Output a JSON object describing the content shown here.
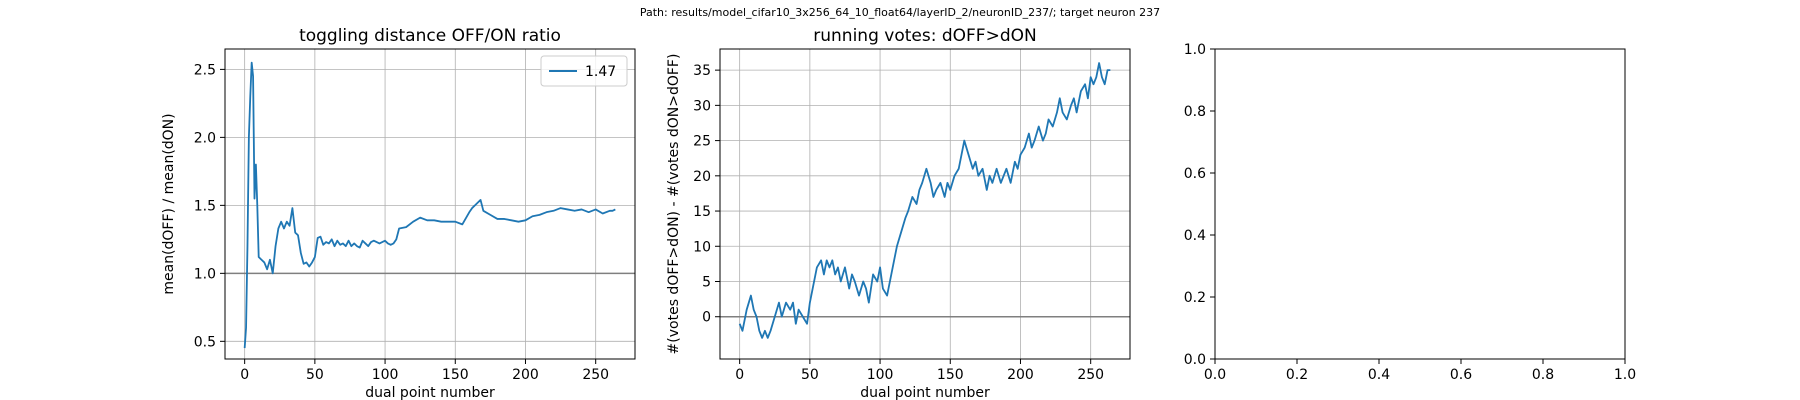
{
  "figure": {
    "suptitle": "Path: results/model_cifar10_3x256_64_10_float64/layerID_2/neuronID_237/; target neuron 237"
  },
  "chart_data": [
    {
      "type": "line",
      "title": "toggling distance OFF/ON ratio",
      "xlabel": "dual point number",
      "ylabel": "mean(dOFF) / mean(dON)",
      "xlim": [
        -14,
        278
      ],
      "ylim": [
        0.37,
        2.65
      ],
      "xticks": [
        0,
        50,
        100,
        150,
        200,
        250
      ],
      "yticks": [
        0.5,
        1.0,
        1.5,
        2.0,
        2.5
      ],
      "ytick_labels": [
        "0.5",
        "1.0",
        "1.5",
        "2.0",
        "2.5"
      ],
      "grid": true,
      "hline": 1.0,
      "legend": {
        "position": "top-right",
        "entries": [
          "1.47"
        ]
      },
      "series": [
        {
          "name": "1.47",
          "color": "#1f77b4",
          "x": [
            0,
            1,
            2,
            3,
            4,
            5,
            6,
            7,
            8,
            9,
            10,
            12,
            14,
            16,
            18,
            20,
            22,
            24,
            26,
            28,
            30,
            32,
            34,
            36,
            38,
            40,
            42,
            44,
            46,
            48,
            50,
            52,
            54,
            56,
            58,
            60,
            62,
            64,
            66,
            68,
            70,
            72,
            74,
            76,
            78,
            80,
            82,
            84,
            86,
            88,
            90,
            92,
            94,
            96,
            98,
            100,
            102,
            104,
            106,
            108,
            110,
            115,
            120,
            125,
            130,
            135,
            140,
            145,
            150,
            155,
            160,
            162,
            164,
            166,
            168,
            170,
            175,
            180,
            185,
            190,
            195,
            200,
            205,
            210,
            215,
            220,
            225,
            230,
            235,
            240,
            245,
            250,
            255,
            260,
            262,
            264
          ],
          "y": [
            0.45,
            0.6,
            1.2,
            2.0,
            2.3,
            2.55,
            2.45,
            1.55,
            1.8,
            1.5,
            1.12,
            1.1,
            1.08,
            1.03,
            1.1,
            1.0,
            1.2,
            1.33,
            1.38,
            1.33,
            1.38,
            1.35,
            1.48,
            1.3,
            1.28,
            1.15,
            1.07,
            1.08,
            1.05,
            1.08,
            1.12,
            1.26,
            1.27,
            1.21,
            1.23,
            1.22,
            1.25,
            1.2,
            1.24,
            1.21,
            1.22,
            1.2,
            1.24,
            1.2,
            1.22,
            1.2,
            1.19,
            1.24,
            1.22,
            1.2,
            1.23,
            1.24,
            1.23,
            1.22,
            1.23,
            1.24,
            1.22,
            1.21,
            1.22,
            1.25,
            1.33,
            1.34,
            1.38,
            1.41,
            1.39,
            1.39,
            1.38,
            1.38,
            1.38,
            1.36,
            1.45,
            1.48,
            1.5,
            1.52,
            1.54,
            1.46,
            1.43,
            1.4,
            1.4,
            1.39,
            1.38,
            1.39,
            1.42,
            1.43,
            1.45,
            1.46,
            1.48,
            1.47,
            1.46,
            1.47,
            1.45,
            1.47,
            1.44,
            1.46,
            1.46,
            1.47
          ]
        }
      ]
    },
    {
      "type": "line",
      "title": "running votes: dOFF>dON",
      "xlabel": "dual point number",
      "ylabel": "#(votes dOFF>dON) - #(votes dON>dOFF)",
      "xlim": [
        -14,
        278
      ],
      "ylim": [
        -6,
        38
      ],
      "xticks": [
        0,
        50,
        100,
        150,
        200,
        250
      ],
      "yticks": [
        0,
        5,
        10,
        15,
        20,
        25,
        30,
        35
      ],
      "ytick_labels": [
        "0",
        "5",
        "10",
        "15",
        "20",
        "25",
        "30",
        "35"
      ],
      "grid": true,
      "hline": 0,
      "series": [
        {
          "color": "#1f77b4",
          "x": [
            0,
            2,
            5,
            8,
            10,
            12,
            14,
            16,
            18,
            20,
            22,
            25,
            28,
            30,
            33,
            36,
            38,
            40,
            42,
            45,
            48,
            50,
            52,
            55,
            58,
            60,
            62,
            64,
            66,
            68,
            70,
            72,
            75,
            78,
            80,
            82,
            85,
            88,
            90,
            92,
            95,
            98,
            100,
            102,
            105,
            108,
            110,
            112,
            115,
            118,
            120,
            123,
            126,
            128,
            130,
            133,
            136,
            138,
            140,
            143,
            146,
            148,
            150,
            153,
            156,
            158,
            160,
            163,
            166,
            168,
            170,
            173,
            176,
            178,
            180,
            183,
            186,
            188,
            190,
            193,
            196,
            198,
            200,
            203,
            206,
            208,
            210,
            213,
            216,
            218,
            220,
            223,
            226,
            228,
            230,
            233,
            236,
            238,
            240,
            243,
            246,
            248,
            250,
            252,
            254,
            256,
            258,
            260,
            262,
            264
          ],
          "y": [
            -1,
            -2,
            1,
            3,
            1,
            0,
            -2,
            -3,
            -2,
            -3,
            -2,
            0,
            2,
            0,
            2,
            1,
            2,
            -1,
            1,
            0,
            -1,
            2,
            4,
            7,
            8,
            6,
            8,
            7,
            8,
            6,
            7,
            5,
            7,
            4,
            6,
            5,
            3,
            5,
            4,
            2,
            6,
            5,
            7,
            4,
            3,
            6,
            8,
            10,
            12,
            14,
            15,
            17,
            16,
            18,
            19,
            21,
            19,
            17,
            18,
            19,
            17,
            19,
            18,
            20,
            21,
            23,
            25,
            23,
            21,
            22,
            20,
            21,
            18,
            20,
            19,
            21,
            19,
            20,
            21,
            19,
            22,
            21,
            23,
            24,
            26,
            24,
            25,
            27,
            25,
            26,
            28,
            27,
            29,
            31,
            29,
            28,
            30,
            31,
            29,
            32,
            33,
            31,
            34,
            33,
            34,
            36,
            34,
            33,
            35,
            35
          ]
        }
      ]
    },
    {
      "type": "line",
      "title": "",
      "xlabel": "",
      "ylabel": "",
      "xlim": [
        0,
        1
      ],
      "ylim": [
        0,
        1
      ],
      "xticks": [
        0,
        0.2,
        0.4,
        0.6,
        0.8,
        1.0
      ],
      "yticks": [
        0,
        0.2,
        0.4,
        0.6,
        0.8,
        1.0
      ],
      "ytick_labels": [
        "0.0",
        "0.2",
        "0.4",
        "0.6",
        "0.8",
        "1.0"
      ],
      "grid": false,
      "series": []
    }
  ]
}
